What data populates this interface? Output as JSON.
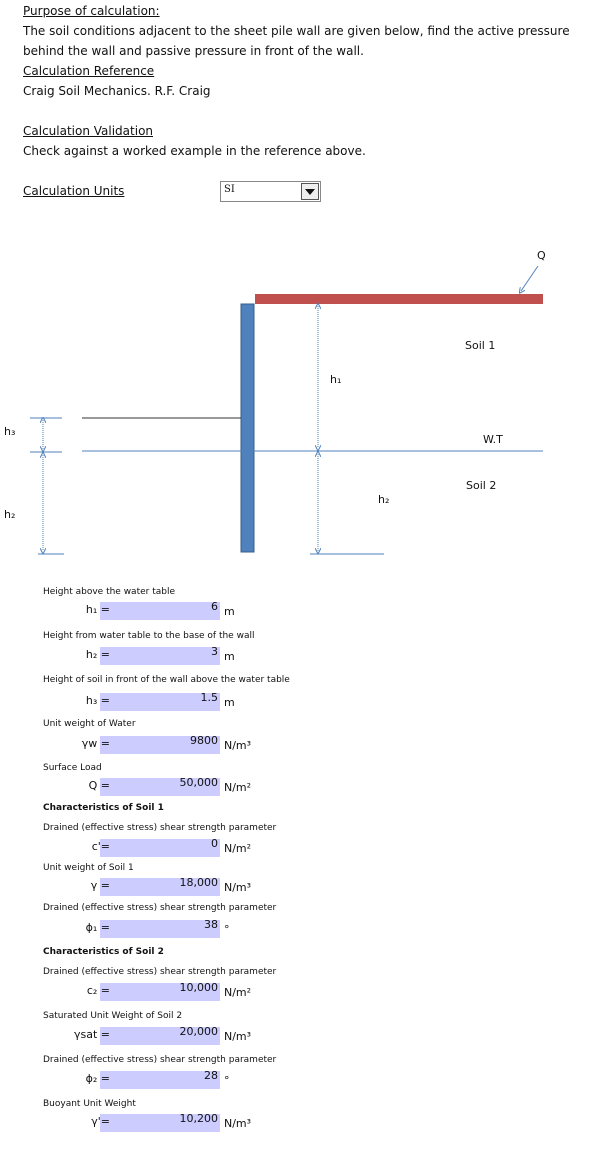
{
  "header": {
    "purpose_label": "Purpose of calculation:",
    "purpose_lines": [
      "The soil conditions adjacent to the sheet pile wall are given below, find the active pressure",
      "behind the wall and passive pressure in front of the wall."
    ],
    "reference_label": "Calculation Reference",
    "reference": "Craig Soil Mechanics. R.F. Craig",
    "validation_label": "Calculation Validation",
    "validation": "Check against a worked example in the reference above.",
    "units_label": "Calculation Units",
    "units_value": "SI"
  },
  "diagram": {
    "q": "Q",
    "soil1": "Soil 1",
    "h1": "h₁",
    "h3": "h₃",
    "wt": "W.T",
    "soil2": "Soil 2",
    "h2_left": "h₂",
    "h2_right": "h₂"
  },
  "inputs": {
    "items": [
      {
        "description": "Height above the water table",
        "symbol": "h₁ =",
        "value": "6",
        "unit": "m"
      },
      {
        "description": "Height from water table to the base of the wall",
        "symbol": "h₂ =",
        "value": "3",
        "unit": "m"
      },
      {
        "description": "Height of soil in front of the wall above the water table",
        "symbol": "h₃ =",
        "value": "1.5",
        "unit": "m"
      },
      {
        "description": "Unit weight of Water",
        "symbol": "γw =",
        "value": "9800",
        "unit": "N/m³"
      },
      {
        "description": "Surface Load",
        "symbol": "Q =",
        "value": "50,000",
        "unit": "N/m²"
      },
      {
        "heading": "Characteristics of Soil 1",
        "description": "Drained (effective stress) shear strength parameter",
        "symbol": "c'=",
        "value": "0",
        "unit": "N/m²"
      },
      {
        "description": "Unit weight of Soil 1",
        "symbol": "γ =",
        "value": "18,000",
        "unit": "N/m³"
      },
      {
        "description": "Drained (effective stress) shear strength parameter",
        "symbol": "ϕ₁ =",
        "value": "38",
        "unit": "°"
      },
      {
        "heading": "Characteristics of Soil 2",
        "description": "Drained (effective stress) shear strength parameter",
        "symbol": "c₂ =",
        "value": "10,000",
        "unit": "N/m²"
      },
      {
        "description": "Saturated Unit Weight of Soil 2",
        "symbol": "γsat =",
        "value": "20,000",
        "unit": "N/m³"
      },
      {
        "description": "Drained (effective stress) shear strength parameter",
        "symbol": "ϕ₂ =",
        "value": "28",
        "unit": "°"
      },
      {
        "description": "Buoyant Unit Weight",
        "symbol": "γ'=",
        "value": "10,200",
        "unit": "N/m³"
      }
    ]
  }
}
